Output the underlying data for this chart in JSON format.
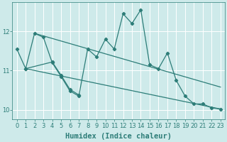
{
  "x": [
    0,
    1,
    2,
    3,
    4,
    5,
    6,
    7,
    8,
    9,
    10,
    11,
    12,
    13,
    14,
    15,
    16,
    17,
    18,
    19,
    20,
    21,
    22,
    23
  ],
  "y_series1": [
    11.55,
    11.05,
    11.95,
    11.85,
    11.2,
    10.85,
    10.48,
    10.35,
    11.55,
    11.35,
    11.8,
    11.55,
    12.45,
    12.2,
    12.55,
    11.15,
    11.05,
    11.45,
    10.75,
    10.35,
    10.15,
    10.15,
    10.05,
    10.02
  ],
  "y_series2": [
    null,
    11.05,
    null,
    null,
    11.22,
    10.88,
    10.52,
    10.38,
    null,
    null,
    null,
    null,
    null,
    null,
    null,
    null,
    null,
    null,
    null,
    null,
    null,
    null,
    null,
    null
  ],
  "trend1_x": [
    2,
    23
  ],
  "trend1_y": [
    11.95,
    10.58
  ],
  "trend2_x": [
    1,
    23
  ],
  "trend2_y": [
    11.05,
    10.02
  ],
  "line_color": "#2d7d78",
  "bg_color": "#ceeaea",
  "grid_color": "#b8d8d8",
  "xlabel": "Humidex (Indice chaleur)",
  "xlabel_fontsize": 7.5,
  "yticks": [
    10,
    11,
    12
  ],
  "xlim": [
    -0.5,
    23.5
  ],
  "ylim": [
    9.75,
    12.75
  ]
}
